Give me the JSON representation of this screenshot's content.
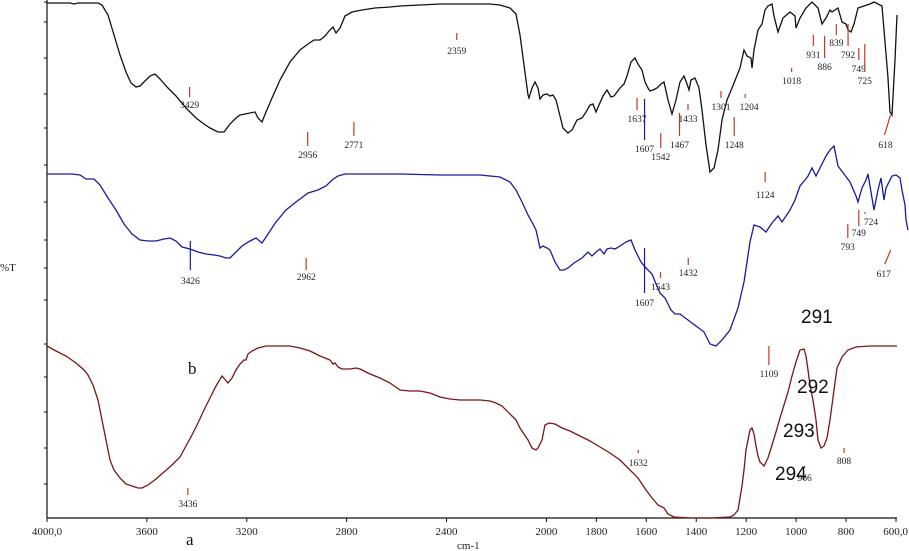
{
  "chart_data": {
    "type": "line",
    "title": "",
    "xlabel": "cm-1",
    "ylabel": "%T",
    "xlim": [
      4000,
      600
    ],
    "x_reversed": true,
    "x_ticks": [
      "4000,0",
      "3600",
      "3200",
      "2800",
      "2400",
      "2000",
      "1800",
      "1600",
      "1400",
      "1200",
      "1000",
      "800",
      "600,0"
    ],
    "x_tick_values": [
      4000,
      3600,
      3200,
      2800,
      2400,
      2000,
      1800,
      1600,
      1400,
      1200,
      1000,
      800,
      600
    ],
    "grid": false,
    "legend": null,
    "series": [
      {
        "name": "top spectrum",
        "color": "#000000",
        "peaks": [
          3429,
          2956,
          2771,
          2359,
          1637,
          1607,
          1542,
          1467,
          1433,
          1301,
          1248,
          1204,
          1124,
          1018,
          931,
          886,
          839,
          792,
          749,
          725,
          618
        ]
      },
      {
        "name": "middle spectrum",
        "color": "#1a1aa0",
        "peaks": [
          3426,
          2962,
          1607,
          1543,
          1432,
          1109,
          793,
          749,
          724,
          617
        ]
      },
      {
        "name": "bottom spectrum",
        "color": "#7a1515",
        "peaks": [
          3436,
          1632,
          966,
          808
        ]
      }
    ],
    "annotations": [
      "b",
      "a",
      "291",
      "292",
      "293",
      "294"
    ]
  },
  "labels": {
    "ylabel": "%T",
    "xlabel": "cm-1",
    "letter_b": "b",
    "letter_a": "a",
    "n291": "291",
    "n292": "292",
    "n293": "293",
    "n294": "294"
  }
}
